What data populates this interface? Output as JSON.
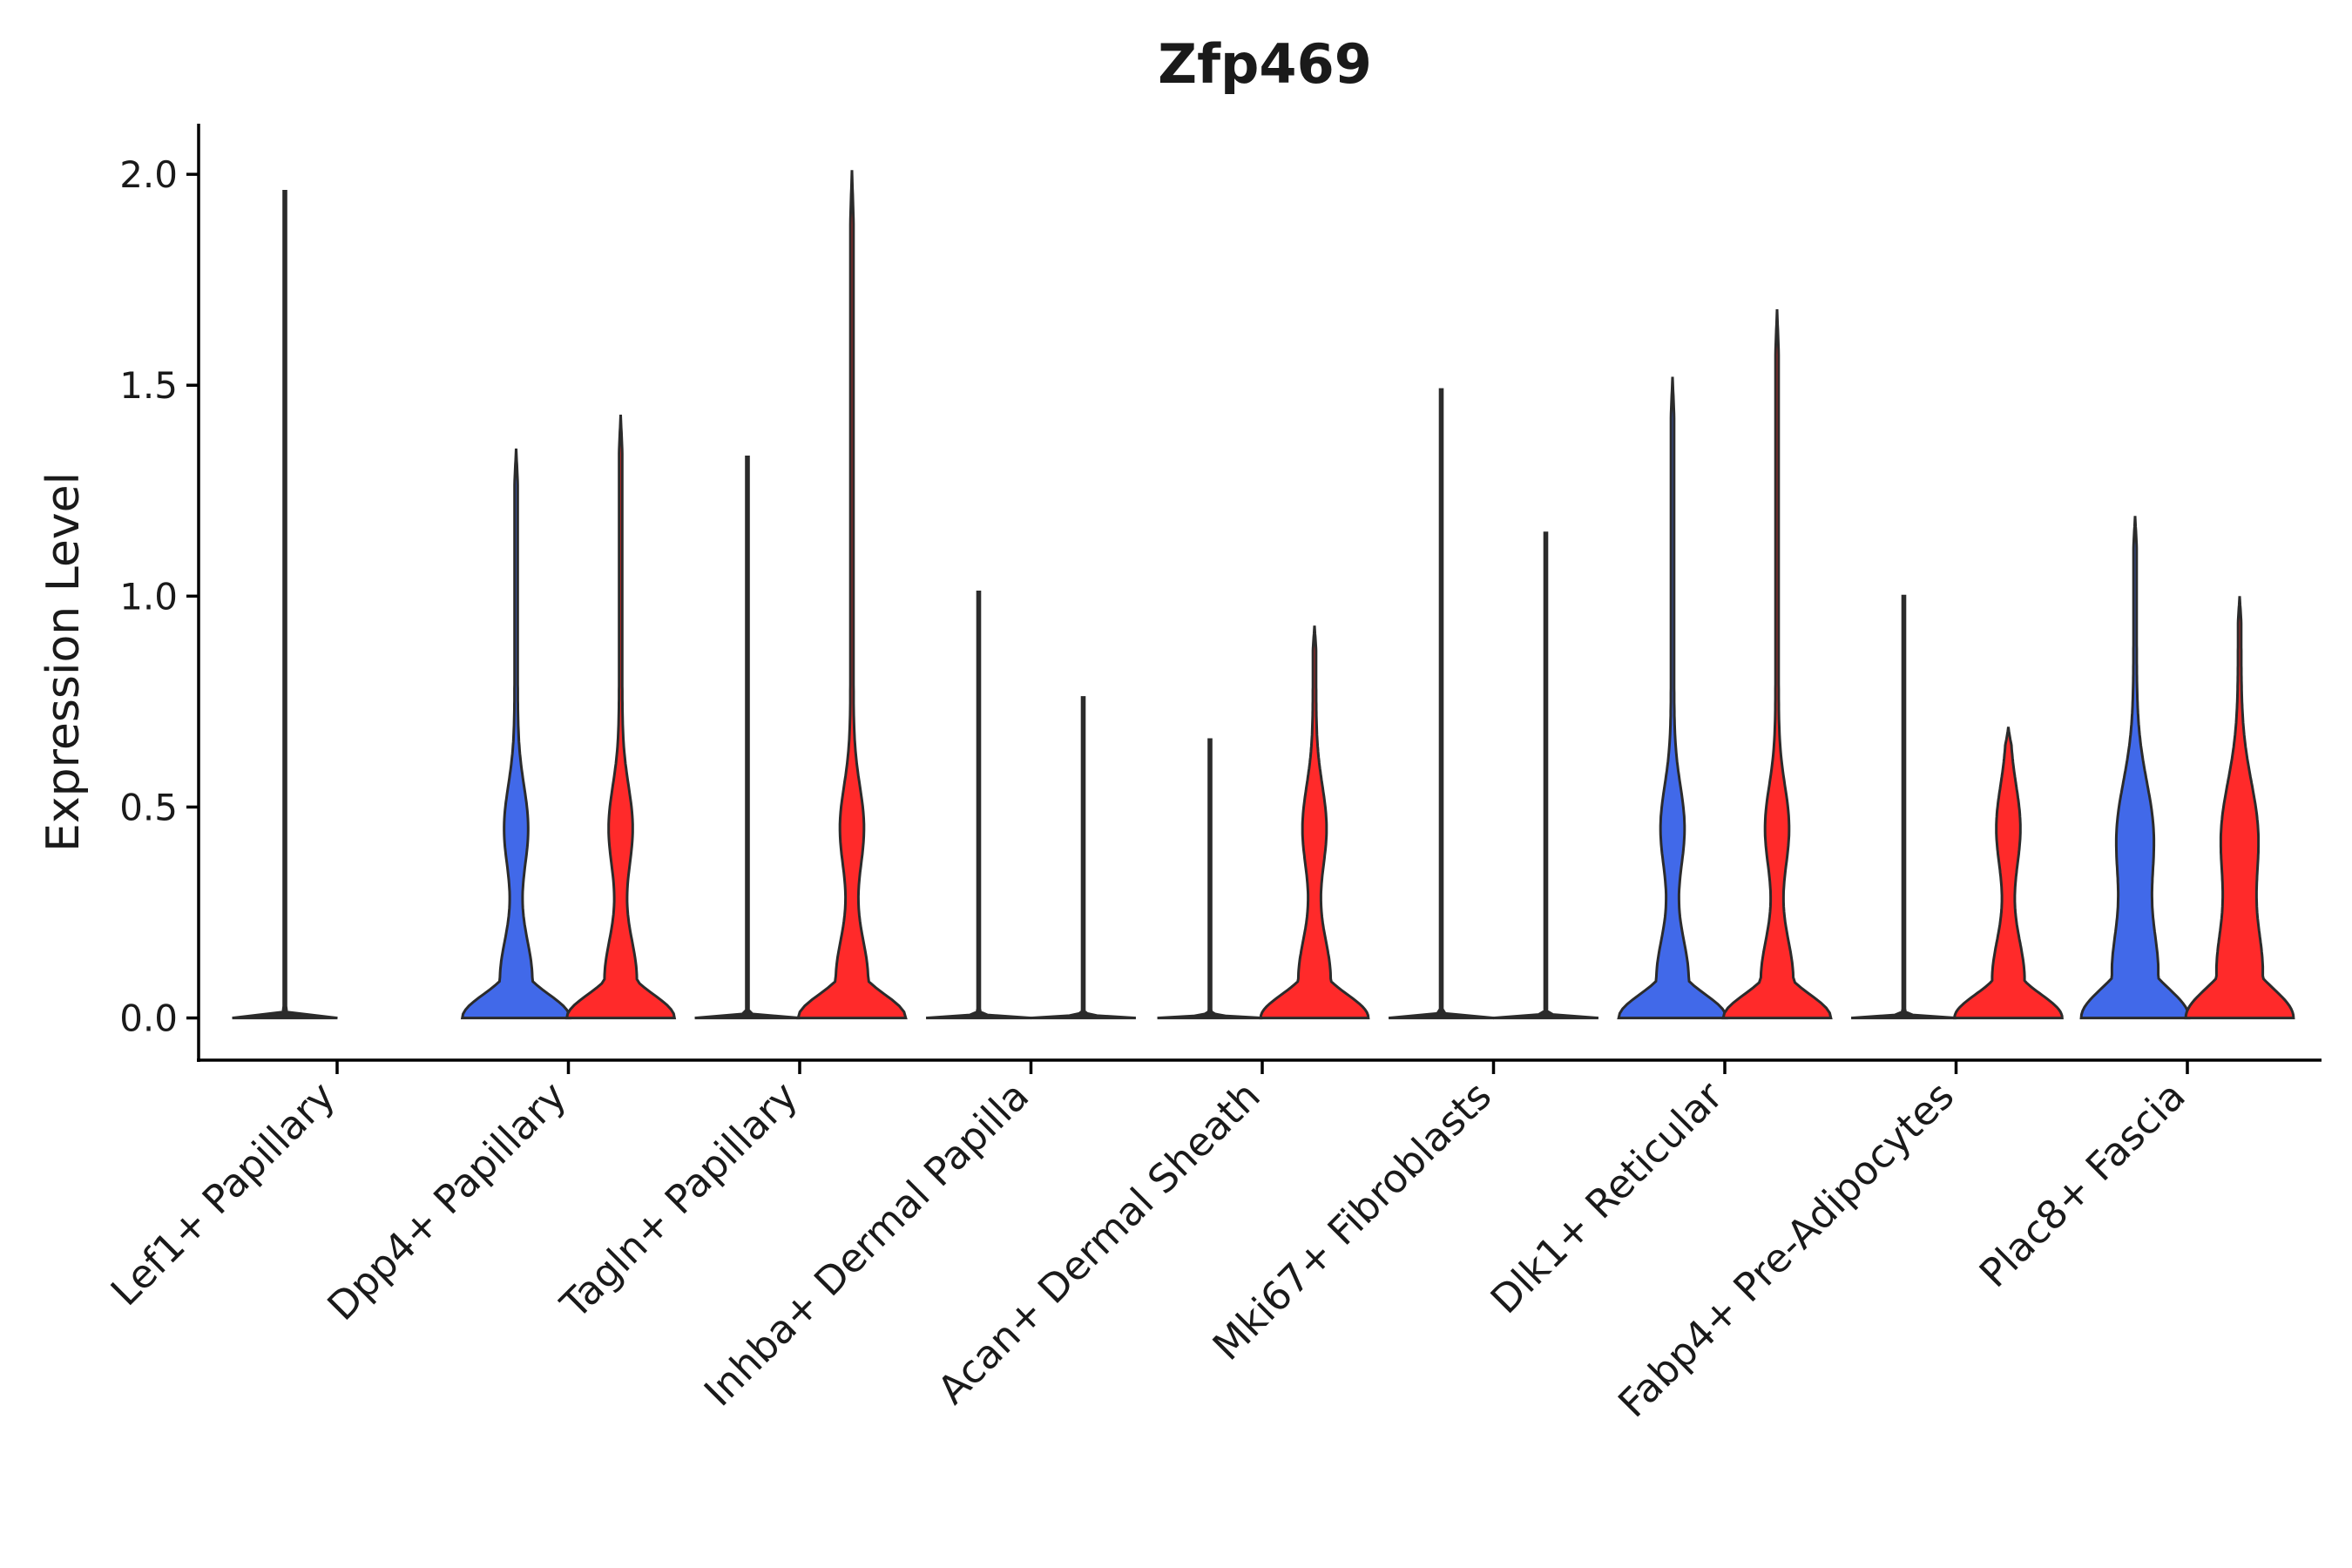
{
  "chart_data": {
    "type": "violin",
    "title": "Zfp469",
    "xlabel": "",
    "ylabel": "Expression Level",
    "ylim": [
      -0.1,
      2.12
    ],
    "yticks": [
      0.0,
      0.5,
      1.0,
      1.5,
      2.0
    ],
    "ytick_labels": [
      "0.0",
      "0.5",
      "1.0",
      "1.5",
      "2.0"
    ],
    "grid": false,
    "legend": "none",
    "categories": [
      "Lef1+ Papillary",
      "Dpp4+ Papillary",
      "Tagln+ Papillary",
      "Inhba+ Dermal Papilla",
      "Acan+ Dermal Sheath",
      "Mki67+ Fibroblasts",
      "Dlk1+ Reticular",
      "Fabp4+ Pre-Adipocytes",
      "Plac8+ Fascia"
    ],
    "series": [
      {
        "name": "group 1",
        "color": "#4169E9",
        "max_values": [
          1.96,
          1.35,
          1.33,
          1.01,
          0.66,
          1.49,
          1.52,
          1.0,
          1.19
        ],
        "shapes": [
          "flat",
          "bimodal",
          "flat",
          "flat",
          "flat",
          "flat",
          "bimodal",
          "flat",
          "bimodal_broad"
        ]
      },
      {
        "name": "group 2",
        "color": "#FF2A2A",
        "max_values": [
          null,
          1.43,
          2.01,
          0.76,
          0.93,
          1.15,
          1.68,
          0.69,
          1.0
        ],
        "shapes": [
          null,
          "bimodal",
          "bimodal",
          "flat",
          "bimodal",
          "flat",
          "bimodal",
          "bimodal",
          "bimodal_broad"
        ]
      }
    ]
  }
}
